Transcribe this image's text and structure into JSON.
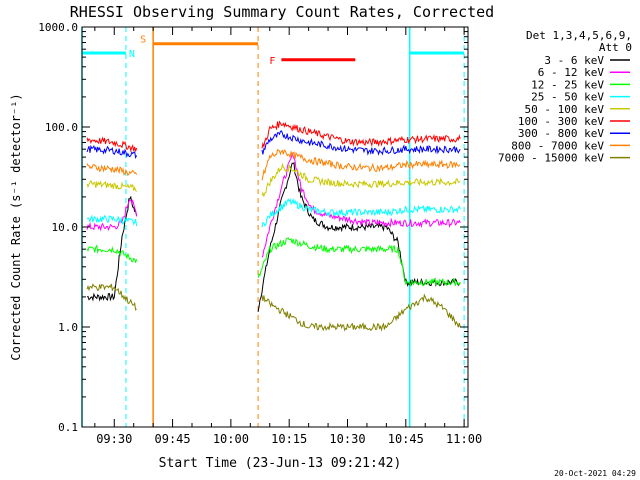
{
  "chart_data": {
    "type": "line",
    "title": "RHESSI Observing Summary Count Rates, Corrected",
    "xlabel": "Start Time (23-Jun-13 09:21:42)",
    "ylabel": "Corrected Count Rate (s⁻¹ detector⁻¹)",
    "yscale": "log",
    "ylim": [
      0.1,
      1000
    ],
    "xlim": [
      "09:21:42",
      "11:01:00"
    ],
    "x_ticks": [
      "09:30",
      "09:45",
      "10:00",
      "10:15",
      "10:30",
      "10:45",
      "11:00"
    ],
    "y_ticks": [
      "0.1",
      "1.0",
      "10.0",
      "100.0",
      "1000.0"
    ],
    "grid": false,
    "legend_header": [
      "Det 1,3,4,5,6,9,",
      "Att 0"
    ],
    "legend_position": "right",
    "footer": "20-Oct-2021 04:29",
    "series": [
      {
        "name": "3 - 6 keV",
        "color": "#000000",
        "x": [
          "09:23",
          "09:30",
          "09:32",
          "09:34",
          "09:36",
          "10:07",
          "10:10",
          "10:13",
          "10:16",
          "10:18",
          "10:21",
          "10:25",
          "10:30",
          "10:35",
          "10:40",
          "10:43",
          "10:45",
          "10:50",
          "10:55",
          "10:59"
        ],
        "values": [
          2,
          2,
          8,
          20,
          12,
          1.5,
          6,
          18,
          45,
          20,
          12,
          10,
          10,
          10,
          10,
          7,
          2.8,
          2.8,
          2.8,
          2.8
        ]
      },
      {
        "name": "6 - 12 keV",
        "color": "#ff00ff",
        "x": [
          "09:23",
          "09:30",
          "09:32",
          "09:34",
          "09:36",
          "10:08",
          "10:10",
          "10:13",
          "10:16",
          "10:18",
          "10:21",
          "10:25",
          "10:30",
          "10:35",
          "10:40",
          "10:43",
          "10:45",
          "10:50",
          "10:55",
          "10:59"
        ],
        "values": [
          10,
          10,
          11,
          20,
          13,
          5,
          10,
          25,
          55,
          25,
          15,
          13,
          12,
          11,
          11,
          11,
          11,
          11,
          11,
          11
        ]
      },
      {
        "name": "12 - 25 keV",
        "color": "#00ff00",
        "x": [
          "09:23",
          "09:30",
          "09:36",
          "10:07",
          "10:10",
          "10:15",
          "10:20",
          "10:25",
          "10:30",
          "10:35",
          "10:40",
          "10:43",
          "10:45",
          "10:50",
          "10:55",
          "10:59"
        ],
        "values": [
          6,
          6,
          4.5,
          3,
          6,
          7.5,
          6.5,
          6,
          6,
          6,
          6,
          6,
          2.8,
          2.8,
          2.8,
          2.8
        ]
      },
      {
        "name": "25 - 50 keV",
        "color": "#00ffff",
        "x": [
          "09:23",
          "09:30",
          "09:36",
          "10:08",
          "10:10",
          "10:15",
          "10:20",
          "10:25",
          "10:30",
          "10:35",
          "10:40",
          "10:45",
          "10:50",
          "10:55",
          "10:59"
        ],
        "values": [
          12,
          12,
          11,
          10,
          13,
          18,
          15,
          14,
          14,
          14,
          14,
          15,
          15,
          15,
          15
        ]
      },
      {
        "name": "50 - 100 keV",
        "color": "#c8c800",
        "x": [
          "09:23",
          "09:30",
          "09:36",
          "10:08",
          "10:10",
          "10:13",
          "10:16",
          "10:20",
          "10:25",
          "10:30",
          "10:35",
          "10:40",
          "10:45",
          "10:50",
          "10:55",
          "10:59"
        ],
        "values": [
          27,
          26,
          24,
          20,
          28,
          40,
          38,
          30,
          28,
          27,
          27,
          27,
          28,
          28,
          28,
          28
        ]
      },
      {
        "name": "100 - 300 keV",
        "color": "#ff0000",
        "x": [
          "09:23",
          "09:30",
          "09:36",
          "10:08",
          "10:10",
          "10:13",
          "10:16",
          "10:20",
          "10:25",
          "10:30",
          "10:35",
          "10:40",
          "10:45",
          "10:50",
          "10:55",
          "10:59"
        ],
        "values": [
          75,
          70,
          60,
          60,
          95,
          110,
          100,
          90,
          80,
          72,
          70,
          72,
          75,
          76,
          76,
          76
        ]
      },
      {
        "name": "300 - 800 keV",
        "color": "#0000ff",
        "x": [
          "09:23",
          "09:30",
          "09:36",
          "10:08",
          "10:10",
          "10:13",
          "10:16",
          "10:20",
          "10:25",
          "10:30",
          "10:35",
          "10:40",
          "10:45",
          "10:50",
          "10:55",
          "10:59"
        ],
        "values": [
          60,
          58,
          52,
          55,
          75,
          85,
          78,
          70,
          65,
          60,
          58,
          58,
          60,
          60,
          60,
          60
        ]
      },
      {
        "name": "800 - 7000 keV",
        "color": "#ff8000",
        "x": [
          "09:23",
          "09:30",
          "09:36",
          "10:08",
          "10:10",
          "10:13",
          "10:16",
          "10:20",
          "10:25",
          "10:30",
          "10:35",
          "10:40",
          "10:45",
          "10:50",
          "10:55",
          "10:59"
        ],
        "values": [
          40,
          38,
          33,
          30,
          50,
          58,
          52,
          47,
          43,
          40,
          39,
          39,
          42,
          42,
          42,
          42
        ]
      },
      {
        "name": "7000 - 15000 keV",
        "color": "#808000",
        "x": [
          "09:23",
          "09:30",
          "09:36",
          "10:08",
          "10:10",
          "10:15",
          "10:20",
          "10:25",
          "10:30",
          "10:35",
          "10:40",
          "10:45",
          "10:50",
          "10:55",
          "10:59"
        ],
        "values": [
          2.5,
          2.5,
          1.5,
          2,
          1.7,
          1.3,
          1.0,
          1.0,
          1.0,
          1.0,
          1.0,
          1.5,
          2,
          1.5,
          1
        ]
      }
    ],
    "markers": [
      {
        "label": "N",
        "color": "#00ffff",
        "level": 550,
        "segments": [
          [
            "09:21:42",
            "09:33"
          ],
          [
            "10:46",
            "11:00"
          ]
        ],
        "solid_lines": [
          "09:21:42",
          "10:46"
        ],
        "dashed_lines": [
          "09:33",
          "11:00"
        ]
      },
      {
        "label": "S",
        "color": "#ff8000",
        "level": 680,
        "segments": [
          [
            "09:40",
            "10:07"
          ]
        ],
        "solid_lines": [
          "09:40"
        ],
        "dashed_lines": [
          "10:07"
        ]
      },
      {
        "label": "F",
        "color": "#ff0000",
        "level": 470,
        "segments": [
          [
            "10:13",
            "10:32"
          ]
        ],
        "solid_lines": [],
        "dashed_lines": []
      }
    ]
  }
}
